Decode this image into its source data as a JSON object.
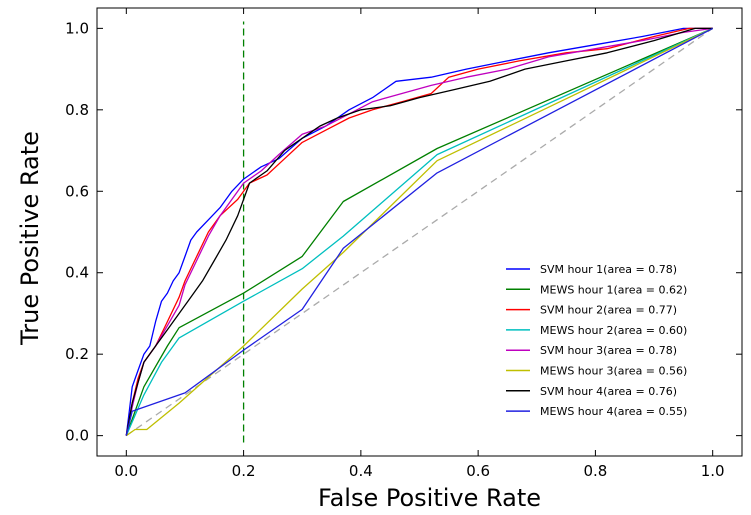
{
  "chart_data": {
    "type": "line",
    "title": "",
    "xlabel": "False Positive Rate",
    "ylabel": "True Positive Rate",
    "xlim": [
      -0.05,
      1.05
    ],
    "ylim": [
      -0.05,
      1.05
    ],
    "x_ticks": [
      "0.0",
      "0.2",
      "0.4",
      "0.6",
      "0.8",
      "1.0"
    ],
    "y_ticks": [
      "0.0",
      "0.2",
      "0.4",
      "0.6",
      "0.8",
      "1.0"
    ],
    "grid": false,
    "legend_position": "lower-right",
    "reference_lines": [
      {
        "kind": "diagonal",
        "from": [
          0,
          0
        ],
        "to": [
          1,
          1
        ],
        "color": "#aaaaaa",
        "style": "dashed"
      },
      {
        "kind": "vertical",
        "x": 0.2,
        "color": "#008000",
        "style": "dashed"
      }
    ],
    "series": [
      {
        "name": "SVM hour 1(area = 0.78)",
        "color": "#0000ff",
        "points": [
          [
            0,
            0
          ],
          [
            0.005,
            0.06
          ],
          [
            0.01,
            0.12
          ],
          [
            0.02,
            0.16
          ],
          [
            0.03,
            0.2
          ],
          [
            0.04,
            0.22
          ],
          [
            0.05,
            0.28
          ],
          [
            0.06,
            0.33
          ],
          [
            0.07,
            0.35
          ],
          [
            0.08,
            0.38
          ],
          [
            0.09,
            0.4
          ],
          [
            0.1,
            0.44
          ],
          [
            0.11,
            0.48
          ],
          [
            0.12,
            0.5
          ],
          [
            0.14,
            0.53
          ],
          [
            0.16,
            0.56
          ],
          [
            0.18,
            0.6
          ],
          [
            0.2,
            0.63
          ],
          [
            0.23,
            0.66
          ],
          [
            0.26,
            0.68
          ],
          [
            0.3,
            0.73
          ],
          [
            0.34,
            0.76
          ],
          [
            0.38,
            0.8
          ],
          [
            0.42,
            0.83
          ],
          [
            0.46,
            0.87
          ],
          [
            0.52,
            0.88
          ],
          [
            0.58,
            0.9
          ],
          [
            0.65,
            0.92
          ],
          [
            0.72,
            0.94
          ],
          [
            0.8,
            0.96
          ],
          [
            0.88,
            0.98
          ],
          [
            0.95,
            1.0
          ],
          [
            1.0,
            1.0
          ]
        ]
      },
      {
        "name": "MEWS hour 1(area = 0.62)",
        "color": "#008000",
        "points": [
          [
            0,
            0
          ],
          [
            0.03,
            0.12
          ],
          [
            0.07,
            0.22
          ],
          [
            0.09,
            0.265
          ],
          [
            0.2,
            0.35
          ],
          [
            0.3,
            0.44
          ],
          [
            0.37,
            0.575
          ],
          [
            0.53,
            0.705
          ],
          [
            1.0,
            1.0
          ]
        ]
      },
      {
        "name": "SVM hour 2(area = 0.77)",
        "color": "#ff0000",
        "points": [
          [
            0,
            0
          ],
          [
            0.01,
            0.08
          ],
          [
            0.02,
            0.14
          ],
          [
            0.03,
            0.18
          ],
          [
            0.05,
            0.22
          ],
          [
            0.07,
            0.28
          ],
          [
            0.09,
            0.34
          ],
          [
            0.1,
            0.38
          ],
          [
            0.12,
            0.44
          ],
          [
            0.14,
            0.5
          ],
          [
            0.16,
            0.54
          ],
          [
            0.19,
            0.58
          ],
          [
            0.21,
            0.62
          ],
          [
            0.24,
            0.64
          ],
          [
            0.27,
            0.68
          ],
          [
            0.3,
            0.72
          ],
          [
            0.34,
            0.75
          ],
          [
            0.38,
            0.78
          ],
          [
            0.42,
            0.8
          ],
          [
            0.47,
            0.82
          ],
          [
            0.52,
            0.84
          ],
          [
            0.55,
            0.88
          ],
          [
            0.6,
            0.9
          ],
          [
            0.67,
            0.92
          ],
          [
            0.75,
            0.94
          ],
          [
            0.82,
            0.95
          ],
          [
            0.9,
            0.98
          ],
          [
            0.96,
            1.0
          ],
          [
            1.0,
            1.0
          ]
        ]
      },
      {
        "name": "MEWS hour 2(area = 0.60)",
        "color": "#00bfbf",
        "points": [
          [
            0,
            0
          ],
          [
            0.03,
            0.1
          ],
          [
            0.06,
            0.18
          ],
          [
            0.09,
            0.24
          ],
          [
            0.2,
            0.33
          ],
          [
            0.3,
            0.41
          ],
          [
            0.37,
            0.49
          ],
          [
            0.53,
            0.69
          ],
          [
            1.0,
            1.0
          ]
        ]
      },
      {
        "name": "SVM hour 3(area = 0.78)",
        "color": "#bf00bf",
        "points": [
          [
            0,
            0
          ],
          [
            0.01,
            0.07
          ],
          [
            0.02,
            0.13
          ],
          [
            0.03,
            0.18
          ],
          [
            0.05,
            0.22
          ],
          [
            0.07,
            0.27
          ],
          [
            0.09,
            0.32
          ],
          [
            0.1,
            0.37
          ],
          [
            0.12,
            0.43
          ],
          [
            0.14,
            0.49
          ],
          [
            0.16,
            0.54
          ],
          [
            0.18,
            0.58
          ],
          [
            0.2,
            0.62
          ],
          [
            0.23,
            0.65
          ],
          [
            0.26,
            0.69
          ],
          [
            0.3,
            0.74
          ],
          [
            0.34,
            0.76
          ],
          [
            0.38,
            0.79
          ],
          [
            0.42,
            0.82
          ],
          [
            0.47,
            0.84
          ],
          [
            0.52,
            0.86
          ],
          [
            0.58,
            0.88
          ],
          [
            0.65,
            0.9
          ],
          [
            0.72,
            0.93
          ],
          [
            0.8,
            0.95
          ],
          [
            0.88,
            0.97
          ],
          [
            0.95,
            0.99
          ],
          [
            1.0,
            1.0
          ]
        ]
      },
      {
        "name": "MEWS hour 3(area = 0.56)",
        "color": "#bfbf00",
        "points": [
          [
            0,
            0
          ],
          [
            0.015,
            0.015
          ],
          [
            0.035,
            0.015
          ],
          [
            0.09,
            0.08
          ],
          [
            0.2,
            0.22
          ],
          [
            0.3,
            0.36
          ],
          [
            0.37,
            0.45
          ],
          [
            0.53,
            0.675
          ],
          [
            1.0,
            1.0
          ]
        ]
      },
      {
        "name": "SVM hour 4(area = 0.76)",
        "color": "#000000",
        "points": [
          [
            0,
            0
          ],
          [
            0.01,
            0.08
          ],
          [
            0.02,
            0.13
          ],
          [
            0.03,
            0.18
          ],
          [
            0.05,
            0.22
          ],
          [
            0.07,
            0.26
          ],
          [
            0.09,
            0.3
          ],
          [
            0.11,
            0.34
          ],
          [
            0.13,
            0.38
          ],
          [
            0.15,
            0.43
          ],
          [
            0.17,
            0.48
          ],
          [
            0.19,
            0.54
          ],
          [
            0.21,
            0.62
          ],
          [
            0.24,
            0.65
          ],
          [
            0.27,
            0.7
          ],
          [
            0.3,
            0.73
          ],
          [
            0.33,
            0.76
          ],
          [
            0.36,
            0.78
          ],
          [
            0.4,
            0.8
          ],
          [
            0.45,
            0.81
          ],
          [
            0.5,
            0.83
          ],
          [
            0.56,
            0.85
          ],
          [
            0.62,
            0.87
          ],
          [
            0.68,
            0.9
          ],
          [
            0.75,
            0.92
          ],
          [
            0.82,
            0.94
          ],
          [
            0.9,
            0.97
          ],
          [
            0.97,
            1.0
          ],
          [
            1.0,
            1.0
          ]
        ]
      },
      {
        "name": "MEWS hour 4(area = 0.55)",
        "color": "#2020e0",
        "points": [
          [
            0,
            0
          ],
          [
            0.01,
            0.06
          ],
          [
            0.1,
            0.105
          ],
          [
            0.2,
            0.21
          ],
          [
            0.3,
            0.31
          ],
          [
            0.37,
            0.46
          ],
          [
            0.53,
            0.645
          ],
          [
            1.0,
            1.0
          ]
        ]
      }
    ]
  }
}
